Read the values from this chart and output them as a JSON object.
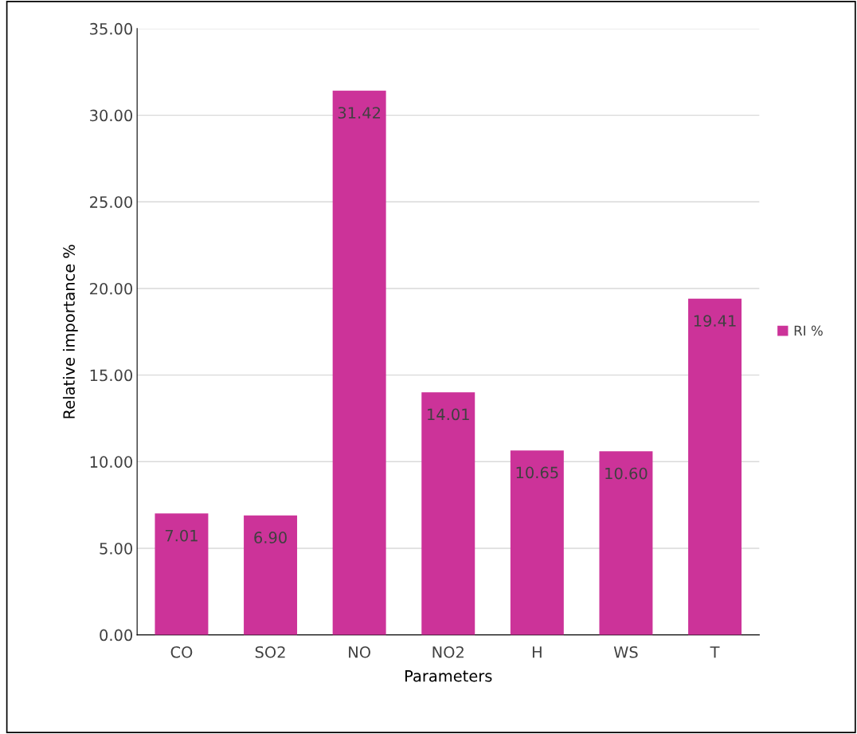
{
  "chart_data": {
    "type": "bar",
    "xlabel": "Parameters",
    "ylabel": "Relative importance %",
    "categories": [
      "CO",
      "SO2",
      "NO",
      "NO2",
      "H",
      "WS",
      "T"
    ],
    "series": [
      {
        "name": "RI %",
        "color": "#cc3399",
        "values": [
          7.01,
          6.9,
          31.42,
          14.01,
          10.65,
          10.6,
          19.41
        ],
        "value_labels": [
          "7.01",
          "6.90",
          "31.42",
          "14.01",
          "10.65",
          "10.60",
          "19.41"
        ]
      }
    ],
    "ylim": [
      0,
      35
    ],
    "yticks": [
      {
        "value": 0,
        "label": "0.00"
      },
      {
        "value": 5,
        "label": "5.00"
      },
      {
        "value": 10,
        "label": "10.00"
      },
      {
        "value": 15,
        "label": "15.00"
      },
      {
        "value": 20,
        "label": "20.00"
      },
      {
        "value": 25,
        "label": "25.00"
      },
      {
        "value": 30,
        "label": "30.00"
      },
      {
        "value": 35,
        "label": "35.00"
      }
    ],
    "grid": "y",
    "legend": "right"
  }
}
